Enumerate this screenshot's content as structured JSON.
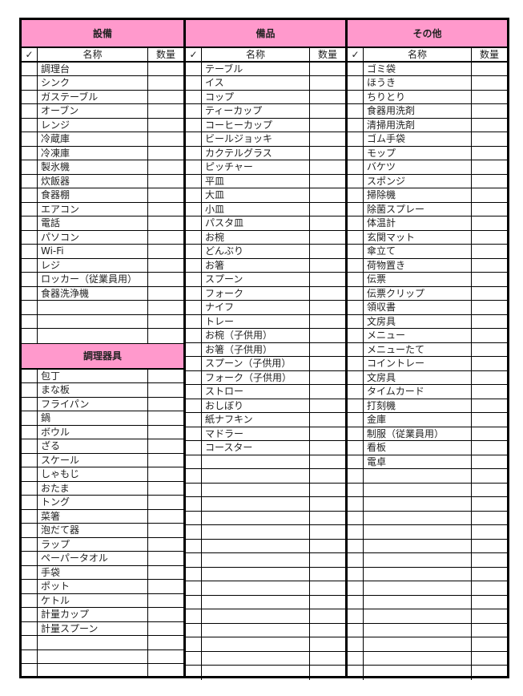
{
  "columns_header": {
    "check": "✓",
    "name": "名称",
    "qty": "数量"
  },
  "colors": {
    "header_bg": "#ff99cc",
    "border": "#000000"
  },
  "sections": [
    {
      "title": "設備",
      "rows": 20,
      "items": [
        "調理台",
        "シンク",
        "ガステーブル",
        "オーブン",
        "レンジ",
        "冷蔵庫",
        "冷凍庫",
        "製氷機",
        "炊飯器",
        "食器棚",
        "エアコン",
        "電話",
        "パソコン",
        "Wi-Fi",
        "レジ",
        "ロッカー（従業員用）",
        "食器洗浄機"
      ]
    },
    {
      "title": "調理器具",
      "rows": 22,
      "items": [
        "包丁",
        "まな板",
        "フライパン",
        "鍋",
        "ボウル",
        "ざる",
        "スケール",
        "しゃもじ",
        "おたま",
        "トング",
        "菜箸",
        "泡だて器",
        "ラップ",
        "ペーパータオル",
        "手袋",
        "ポット",
        "ケトル",
        "計量カップ",
        "計量スプーン"
      ]
    },
    {
      "title": "備品",
      "rows": 44,
      "items": [
        "テーブル",
        "イス",
        "コップ",
        "ティーカップ",
        "コーヒーカップ",
        "ビールジョッキ",
        "カクテルグラス",
        "ピッチャー",
        "平皿",
        "大皿",
        "小皿",
        "パスタ皿",
        "お椀",
        "どんぶり",
        "お箸",
        "スプーン",
        "フォーク",
        "ナイフ",
        "トレー",
        "お椀（子供用）",
        "お箸（子供用）",
        "スプーン（子供用）",
        "フォーク（子供用）",
        "ストロー",
        "おしぼり",
        "紙ナフキン",
        "マドラー",
        "コースター"
      ]
    },
    {
      "title": "その他",
      "rows": 44,
      "items": [
        "ゴミ袋",
        "ほうき",
        "ちりとり",
        "食器用洗剤",
        "清掃用洗剤",
        "ゴム手袋",
        "モップ",
        "バケツ",
        "スポンジ",
        "掃除機",
        "除菌スプレー",
        "体温計",
        "玄関マット",
        "傘立て",
        "荷物置き",
        "伝票",
        "伝票クリップ",
        "領収書",
        "文房具",
        "メニュー",
        "メニューたて",
        "コイントレー",
        "文房具",
        "タイムカード",
        "打刻機",
        "金庫",
        "制服（従業員用）",
        "看板",
        "電卓"
      ]
    }
  ]
}
